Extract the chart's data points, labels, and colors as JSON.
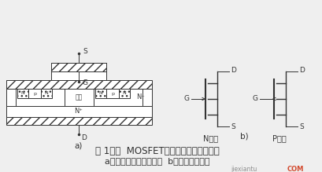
{
  "bg_color": "#efefef",
  "line_color": "#333333",
  "hatch_color": "#555555",
  "title_line1": "图 1功率  MOSFET的结构和电气图形符号",
  "title_line2": "a）内部结构断面示意图  b）电气图形符号",
  "label_a": "a)",
  "label_b": "b)",
  "label_N": "N沟道",
  "label_P": "P沟道",
  "watermark": "jiexiantu",
  "font_size_title": 8.5,
  "font_size_label": 7.5,
  "font_size_small": 7
}
